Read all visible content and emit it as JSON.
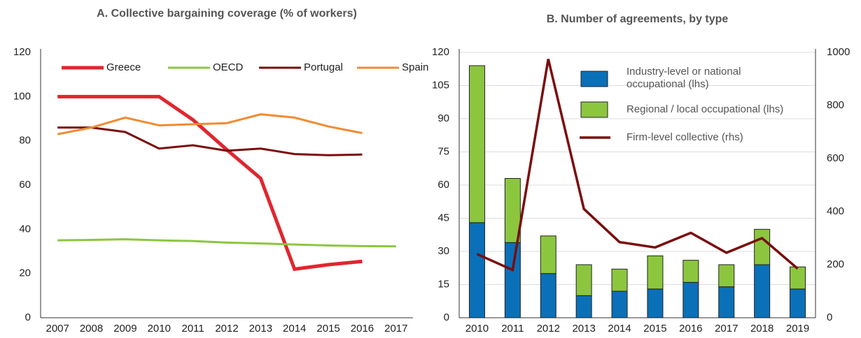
{
  "chart_data": [
    {
      "type": "line",
      "title": "A. Collective bargaining coverage (% of workers)",
      "categories": [
        "2007",
        "2008",
        "2009",
        "2010",
        "2011",
        "2012",
        "2013",
        "2014",
        "2015",
        "2016",
        "2017"
      ],
      "series": [
        {
          "name": "Greece",
          "color": "#e0262f",
          "values": [
            100,
            100,
            100,
            100,
            89.5,
            76,
            63,
            22,
            24,
            25.5,
            null
          ]
        },
        {
          "name": "OECD",
          "color": "#8cc63f",
          "values": [
            35,
            35.2,
            35.5,
            35,
            34.7,
            34,
            33.6,
            33.1,
            32.7,
            32.4,
            32.3
          ]
        },
        {
          "name": "Portugal",
          "color": "#7b0c0c",
          "values": [
            86,
            86,
            84,
            76.5,
            78,
            75.5,
            76.5,
            74,
            73.5,
            73.8,
            null
          ]
        },
        {
          "name": "Spain",
          "color": "#f28a30",
          "values": [
            83,
            86,
            90.5,
            87,
            87.5,
            88,
            92,
            90.5,
            86.5,
            83.5,
            null
          ]
        }
      ],
      "ylim": [
        0,
        120
      ],
      "yticks": [
        0,
        20,
        40,
        60,
        80,
        100,
        120
      ],
      "grid": false,
      "legend": "top"
    },
    {
      "type": "bar",
      "title": "B. Number of agreements, by type",
      "stacked": true,
      "categories": [
        "2010",
        "2011",
        "2012",
        "2013",
        "2014",
        "2015",
        "2016",
        "2017",
        "2018",
        "2019"
      ],
      "series": [
        {
          "name": "Industry-level or national occupational  (lhs)",
          "color": "#0a70b8",
          "values": [
            43,
            34,
            20,
            10,
            12,
            13,
            16,
            14,
            24,
            13
          ]
        },
        {
          "name": "Regional / local occupational (lhs)",
          "color": "#8cc63f",
          "values": [
            71,
            29,
            17,
            14,
            10,
            15,
            10,
            10,
            16,
            10
          ]
        },
        {
          "name": "Firm-level collective (rhs)",
          "color": "#7b0c0c",
          "type": "line",
          "axis": "y2",
          "values": [
            240,
            180,
            975,
            410,
            285,
            265,
            320,
            245,
            300,
            185
          ]
        }
      ],
      "ylim": [
        0,
        120
      ],
      "yticks": [
        0,
        15,
        30,
        45,
        60,
        75,
        90,
        105,
        120
      ],
      "y2lim": [
        0,
        1000
      ],
      "y2ticks": [
        0,
        200,
        400,
        600,
        800,
        1000
      ],
      "grid": true,
      "legend": "top"
    }
  ]
}
